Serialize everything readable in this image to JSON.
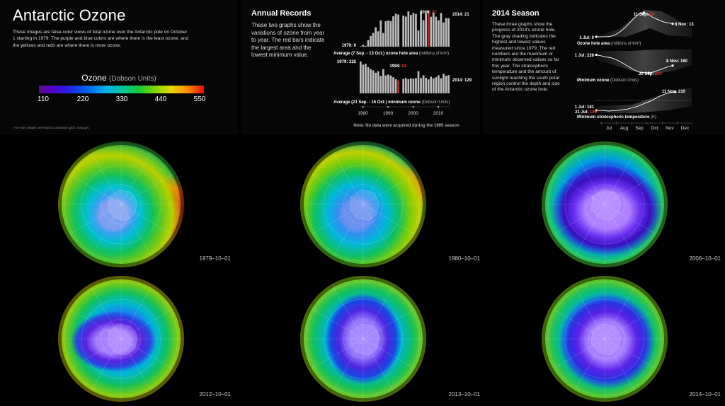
{
  "title": "Antarctic Ozone",
  "intro": "These images are false-color views of total ozone over the Antarctic pole on October 1 starting in 1979. The purple and blue colors are where there is the least ozone, and the yellows and reds are where there is more ozone.",
  "colorbar": {
    "title": "Ozone",
    "unit": "(Dobson Units)",
    "ticks": [
      "110",
      "220",
      "330",
      "440",
      "550"
    ],
    "values": [
      110,
      220,
      330,
      440,
      550
    ]
  },
  "footer": "For more details see http://ozonewatch.gsfc.nasa.gov",
  "annual": {
    "heading": "Annual Records",
    "description": "These two graphs show the variations of ozone from year to year. The red bars indicate the largest area and the lowest minimum value.",
    "note": "Note: No data were acquired during the 1995 season"
  },
  "season": {
    "heading": "2014 Season",
    "description": "These three graphs show the progress of 2014's ozone hole. The gray shading indicates the highest and lowest values measured since 1979. The red numbers are the maximum or minimum observed values so far this year. The stratospheric temperature and the amount of sunlight reaching the south polar region control the depth and size of the Antarctic ozone hole."
  },
  "chart_data": [
    {
      "type": "bar",
      "id": "hole-area",
      "xlabel": "Average (7 Sep. - 13 Oct.) ozone hole area",
      "xlabel_unit": "(millions of km²)",
      "x": [
        1979,
        1980,
        1981,
        1982,
        1983,
        1984,
        1985,
        1986,
        1987,
        1988,
        1989,
        1990,
        1991,
        1992,
        1993,
        1994,
        1996,
        1997,
        1998,
        1999,
        2000,
        2001,
        2002,
        2003,
        2004,
        2005,
        2006,
        2007,
        2008,
        2009,
        2010,
        2011,
        2012,
        2013,
        2014
      ],
      "values": [
        0.1,
        1.4,
        0.6,
        4.8,
        7.9,
        10.1,
        14.2,
        11.3,
        19.3,
        10.0,
        18.7,
        19.2,
        18.8,
        22.3,
        24.2,
        23.6,
        22.8,
        22.1,
        25.9,
        23.3,
        24.8,
        24.0,
        12.0,
        25.8,
        19.5,
        24.4,
        26.6,
        22.0,
        25.2,
        22.0,
        19.4,
        24.7,
        17.8,
        21.0,
        20.9
      ],
      "highlight": [
        2006
      ],
      "labels": [
        {
          "text": "1979:",
          "value": "0"
        },
        {
          "text": "2006:",
          "value": "27"
        },
        {
          "text": "2014:",
          "value": "21"
        }
      ]
    },
    {
      "type": "bar",
      "id": "min-ozone",
      "xlabel": "Average (21 Sep. - 16 Oct.) minimum ozone",
      "xlabel_unit": "(Dobson Units)",
      "x": [
        1979,
        1980,
        1981,
        1982,
        1983,
        1984,
        1985,
        1986,
        1987,
        1988,
        1989,
        1990,
        1991,
        1992,
        1993,
        1994,
        1996,
        1997,
        1998,
        1999,
        2000,
        2001,
        2002,
        2003,
        2004,
        2005,
        2006,
        2007,
        2008,
        2009,
        2010,
        2011,
        2012,
        2013,
        2014
      ],
      "values": [
        225,
        203,
        209,
        185,
        172,
        163,
        146,
        156,
        123,
        172,
        127,
        133,
        126,
        114,
        100,
        92,
        103,
        108,
        101,
        106,
        104,
        108,
        157,
        109,
        128,
        110,
        99,
        118,
        106,
        114,
        128,
        107,
        139,
        124,
        129
      ],
      "highlight": [
        1994
      ],
      "labels": [
        {
          "text": "1979:",
          "value": "225"
        },
        {
          "text": "1994:",
          "value": "92"
        },
        {
          "text": "2014:",
          "value": "129"
        }
      ],
      "x_ticks": [
        "1980",
        "1990",
        "2000",
        "2010"
      ]
    },
    {
      "type": "line",
      "id": "season-area",
      "xlabel": "Ozone hole area",
      "xlabel_unit": "(millions of km²)",
      "annotations": [
        {
          "text": "1 Jul:",
          "value": "0"
        },
        {
          "text": "11 Sep:",
          "value": "24"
        },
        {
          "text": "8 Nov:",
          "value": "13"
        }
      ],
      "x": [
        0,
        8,
        16,
        24,
        32,
        40,
        48,
        56,
        64,
        72,
        80,
        88,
        96,
        104,
        112,
        120,
        128
      ],
      "y": [
        0,
        0,
        0.1,
        0.5,
        2,
        5,
        9,
        14,
        19,
        23,
        24,
        22,
        19,
        17,
        15,
        14,
        13
      ]
    },
    {
      "type": "line",
      "id": "season-min",
      "xlabel": "Minimum ozone",
      "xlabel_unit": "(Dobson Units)",
      "annotations": [
        {
          "text": "1 Jul:",
          "value": "228"
        },
        {
          "text": "30 Sep:",
          "value": "114"
        },
        {
          "text": "8 Nov:",
          "value": "160"
        }
      ],
      "x": [
        0,
        8,
        16,
        24,
        32,
        40,
        48,
        56,
        64,
        72,
        80,
        88,
        96,
        104,
        112,
        120,
        128
      ],
      "y": [
        228,
        222,
        215,
        210,
        200,
        185,
        168,
        150,
        132,
        120,
        116,
        114,
        120,
        130,
        142,
        152,
        160
      ]
    },
    {
      "type": "line",
      "id": "season-temp",
      "xlabel": "Minimum stratospheric temperature",
      "xlabel_unit": "(K)",
      "annotations": [
        {
          "text": "1 Jul:",
          "value": "181"
        },
        {
          "text": "21 Jul:",
          "value": "180"
        },
        {
          "text": "11 Nov:",
          "value": "210"
        }
      ],
      "x": [
        0,
        8,
        16,
        20,
        28,
        36,
        44,
        52,
        60,
        68,
        76,
        84,
        92,
        100,
        108,
        116,
        124,
        132
      ],
      "y": [
        181,
        181,
        180.5,
        180,
        180.5,
        181,
        182,
        183,
        185,
        187,
        190,
        193,
        196,
        200,
        204,
        207,
        209,
        210
      ],
      "x_ticks": [
        "Jul",
        "Aug",
        "Sep",
        "Oct",
        "Nov",
        "Dec"
      ]
    }
  ],
  "globes": [
    {
      "date": "1979–10–01",
      "theme": "1979"
    },
    {
      "date": "1980–10–01",
      "theme": "1980"
    },
    {
      "date": "2006–10–01",
      "theme": "2006"
    },
    {
      "date": "2012–10–01",
      "theme": "2012"
    },
    {
      "date": "2013–10–01",
      "theme": "2013"
    },
    {
      "date": "2014–10–01",
      "theme": "2014"
    }
  ]
}
